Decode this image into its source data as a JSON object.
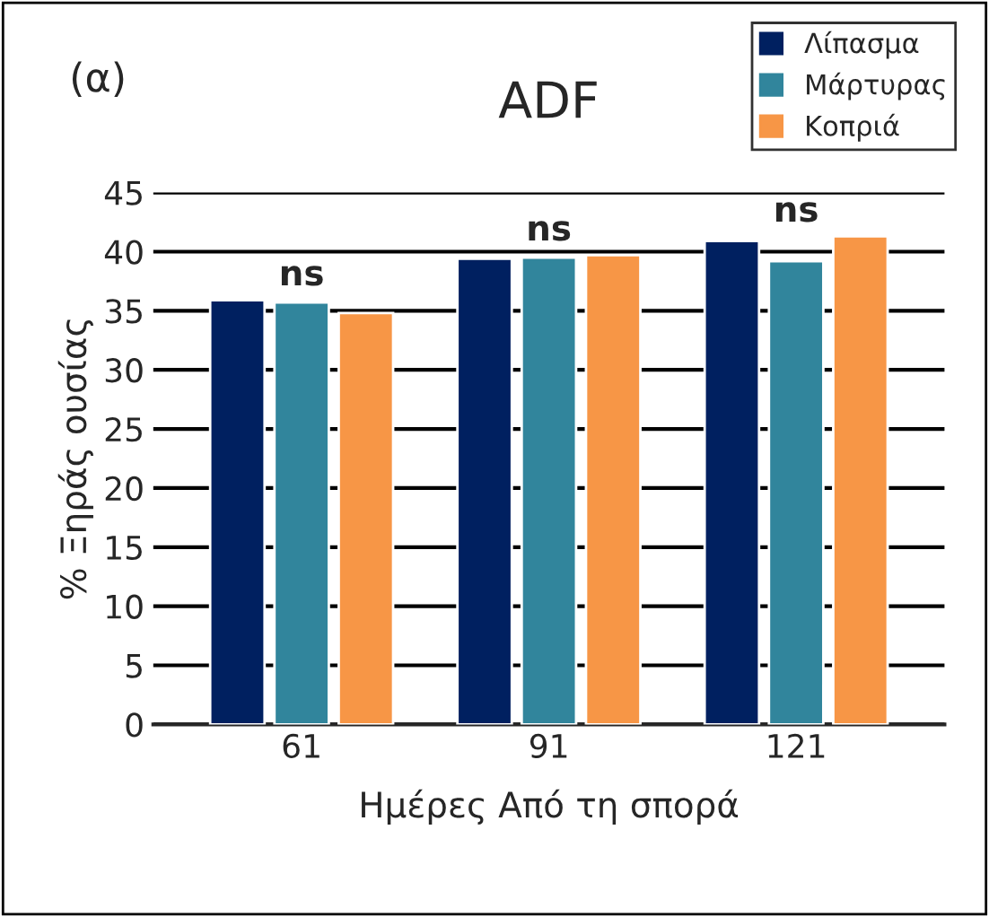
{
  "chart_data": {
    "type": "bar",
    "title": "ADF",
    "xlabel": "Ημέρες Από τη σπορά",
    "ylabel": "% Ξηράς ουσίας",
    "categories": [
      "61",
      "91",
      "121"
    ],
    "series": [
      {
        "name": "Λίπασμα",
        "color": "#002060",
        "values": [
          35.9,
          39.4,
          40.9
        ]
      },
      {
        "name": "Μάρτυρας",
        "color": "#31859c",
        "values": [
          35.7,
          39.5,
          39.2
        ]
      },
      {
        "name": "Κοπριά",
        "color": "#f79646",
        "values": [
          34.8,
          39.7,
          41.3
        ]
      }
    ],
    "ylim": [
      0,
      45
    ],
    "yticks": [
      0,
      5,
      10,
      15,
      20,
      25,
      30,
      35,
      40,
      45
    ],
    "grid": "y",
    "legend": "top right",
    "annotations": [
      "(α)",
      "ns",
      "ns",
      "ns"
    ]
  }
}
